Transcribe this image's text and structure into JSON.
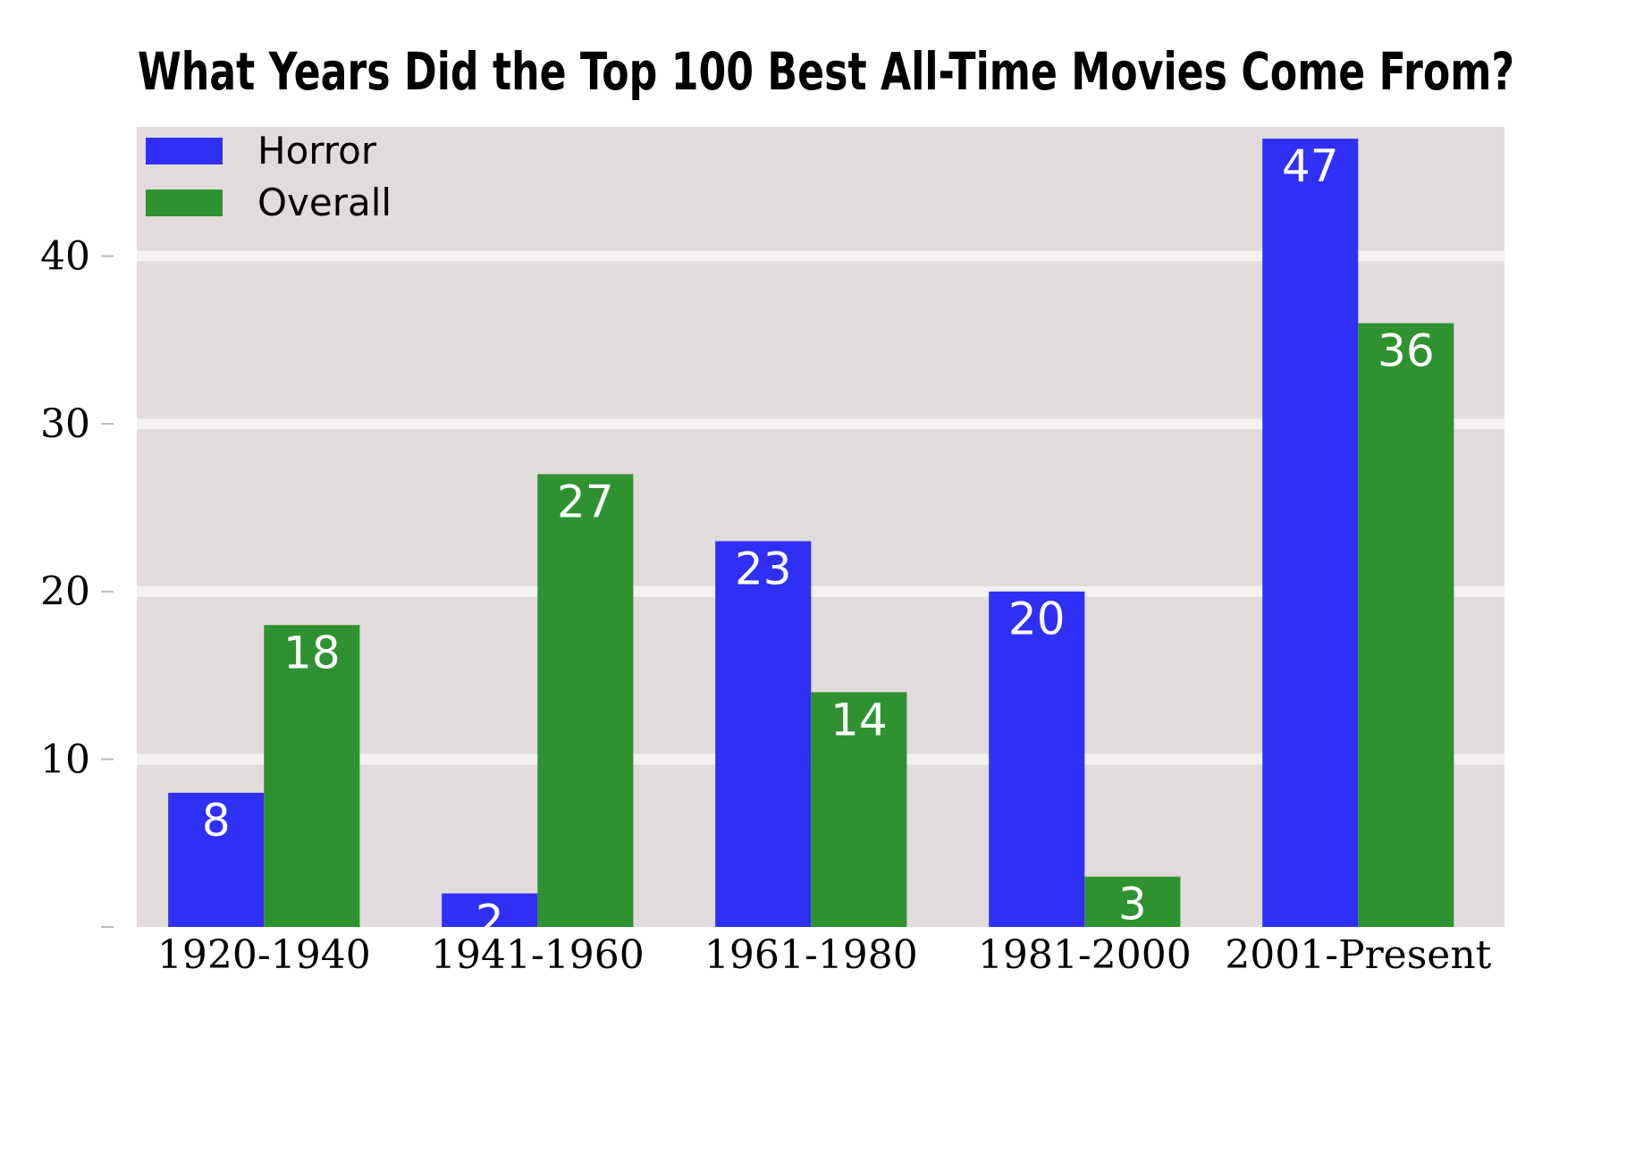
{
  "chart_data": {
    "type": "bar",
    "title": "What Years Did the Top 100 Best All-Time Movies Come From?",
    "xlabel": "",
    "ylabel": "",
    "categories": [
      "1920-1940",
      "1941-1960",
      "1961-1980",
      "1981-2000",
      "2001-Present"
    ],
    "series": [
      {
        "name": "Horror",
        "color": "#2f2ff5",
        "values": [
          8,
          2,
          23,
          20,
          47
        ]
      },
      {
        "name": "Overall",
        "color": "#2e9230",
        "values": [
          18,
          27,
          14,
          3,
          36
        ]
      }
    ],
    "ylim": [
      0,
      47.7
    ],
    "yticks": [
      10,
      20,
      30,
      40
    ],
    "ytick_labels": [
      "10",
      "20",
      "30",
      "40"
    ],
    "grid": true,
    "legend": "top-left",
    "background": "#e1dbdb",
    "grid_color": "#f4f1f1"
  }
}
